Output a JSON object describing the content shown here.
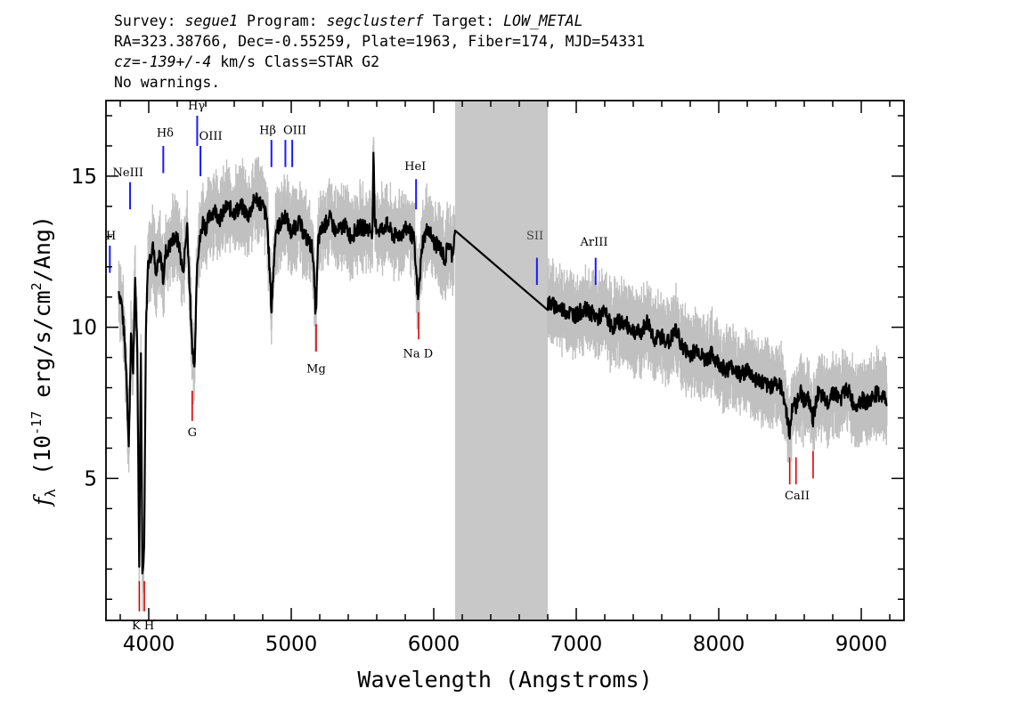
{
  "header": {
    "line1": {
      "survey_label": "Survey: ",
      "survey": "segue1",
      "program_label": " Program: ",
      "program": "segclusterf",
      "target_label": " Target: ",
      "target": "LOW_METAL"
    },
    "line2": "RA=323.38766, Dec=-0.55259, Plate=1963, Fiber=174, MJD=54331",
    "line3": {
      "cz": "cz=-139+/-4",
      "rest": " km/s Class=STAR G2"
    },
    "line4": "No warnings."
  },
  "chart_data": {
    "type": "line",
    "xlabel": "Wavelength (Angstroms)",
    "ylabel_prefix": "f",
    "ylabel_sub": "λ",
    "ylabel_unit_pre": "(10",
    "ylabel_exp": "-17",
    "ylabel_unit_post": " erg/s/cm",
    "ylabel_exp2": "2",
    "ylabel_tail": "/Ang)",
    "xlim": [
      3700,
      9300
    ],
    "ylim": [
      0.3,
      17.5
    ],
    "xticks": [
      4000,
      5000,
      6000,
      7000,
      8000,
      9000
    ],
    "yticks": [
      5,
      10,
      15
    ],
    "x_minor_step": 200,
    "y_minor_step": 1,
    "masked_region": [
      6150,
      6800
    ],
    "colors": {
      "flux": "#000000",
      "error": "#c0c0c0",
      "mask": "#c8c8c8",
      "emission": "#1a1aff",
      "absorption": "#e00000"
    },
    "series": [
      {
        "x": [
          3790,
          3810,
          3830,
          3845,
          3860,
          3875,
          3890,
          3905,
          3920,
          3933,
          3945,
          3955,
          3968,
          3980,
          3995,
          4010,
          4030,
          4050,
          4080,
          4102,
          4120,
          4150,
          4180,
          4210,
          4240,
          4270,
          4300,
          4320,
          4340,
          4360,
          4380,
          4400,
          4430,
          4460,
          4500,
          4550,
          4600,
          4650,
          4700,
          4750,
          4800,
          4830,
          4861,
          4890,
          4920,
          4960,
          5000,
          5050,
          5100,
          5150,
          5172,
          5190,
          5220,
          5270,
          5320,
          5370,
          5420,
          5470,
          5520,
          5570,
          5577,
          5585,
          5620,
          5670,
          5720,
          5770,
          5820,
          5860,
          5890,
          5920,
          5960,
          6000,
          6050,
          6080,
          6100,
          6130,
          6150,
          6800,
          6850,
          6900,
          6950,
          7000,
          7050,
          7100,
          7150,
          7200,
          7250,
          7300,
          7350,
          7400,
          7450,
          7500,
          7550,
          7600,
          7650,
          7700,
          7750,
          7800,
          7850,
          7900,
          7950,
          8000,
          8050,
          8100,
          8150,
          8200,
          8250,
          8300,
          8350,
          8400,
          8450,
          8498,
          8520,
          8542,
          8570,
          8600,
          8630,
          8662,
          8690,
          8720,
          8760,
          8800,
          8850,
          8900,
          8950,
          9000,
          9050,
          9100,
          9150,
          9180
        ],
        "y": [
          11.2,
          10.8,
          9.6,
          8.3,
          6.0,
          9.7,
          8.6,
          11.5,
          9.3,
          2.1,
          9.4,
          2.0,
          2.6,
          9.9,
          12.2,
          12.3,
          12.8,
          11.6,
          12.5,
          11.6,
          12.5,
          12.7,
          13.0,
          12.8,
          11.8,
          13.4,
          9.7,
          8.6,
          12.3,
          12.9,
          13.5,
          13.3,
          13.7,
          13.9,
          13.6,
          14.0,
          13.8,
          14.0,
          13.7,
          14.3,
          14.0,
          13.6,
          10.6,
          13.2,
          13.4,
          13.7,
          13.1,
          13.5,
          13.0,
          12.6,
          10.4,
          12.9,
          13.3,
          13.6,
          13.1,
          13.4,
          13.0,
          13.3,
          13.3,
          13.2,
          16.0,
          13.4,
          13.2,
          13.4,
          13.0,
          13.1,
          13.3,
          12.9,
          10.9,
          12.8,
          13.3,
          12.8,
          12.6,
          12.2,
          12.8,
          12.4,
          13.2,
          10.8,
          10.7,
          10.6,
          10.5,
          10.4,
          10.6,
          10.5,
          10.3,
          10.5,
          10.0,
          10.2,
          10.1,
          9.9,
          9.8,
          10.2,
          9.6,
          9.7,
          9.5,
          9.9,
          9.3,
          9.1,
          9.3,
          8.9,
          9.1,
          8.8,
          8.6,
          8.7,
          8.4,
          8.6,
          8.3,
          8.2,
          8.0,
          8.2,
          7.9,
          6.5,
          7.5,
          7.4,
          7.9,
          7.6,
          7.6,
          6.9,
          7.8,
          7.7,
          7.5,
          7.9,
          7.6,
          8.0,
          7.4,
          7.6,
          7.5,
          7.8,
          7.7,
          7.6
        ]
      }
    ],
    "emission_lines": [
      {
        "label": "NeIII",
        "x": 3869,
        "y0": 13.9,
        "y1": 14.8
      },
      {
        "label": "Hδ",
        "x": 4102,
        "y0": 15.1,
        "y1": 16.0
      },
      {
        "label": "Hγ",
        "x": 4340,
        "y0": 16.0,
        "y1": 17.0
      },
      {
        "label": "OIII",
        "x": 4363,
        "y0": 15.0,
        "y1": 16.0
      },
      {
        "label": "Hβ",
        "x": 4861,
        "y0": 15.3,
        "y1": 16.2
      },
      {
        "label": "OIII",
        "x": 4959,
        "y0": 15.3,
        "y1": 16.2
      },
      {
        "label": "OIII",
        "x": 5007,
        "y0": 15.3,
        "y1": 16.2
      },
      {
        "label": "HeI",
        "x": 5876,
        "y0": 13.9,
        "y1": 14.9
      },
      {
        "label": "SII",
        "x": 6724,
        "y0": 11.4,
        "y1": 12.3
      },
      {
        "label": "ArIII",
        "x": 7136,
        "y0": 11.4,
        "y1": 12.3
      },
      {
        "label": "H",
        "x": 3727,
        "y0": 11.8,
        "y1": 12.7
      }
    ],
    "absorption_lines": [
      {
        "label": "K",
        "x": 3934,
        "y0": 0.6,
        "y1": 1.6
      },
      {
        "label": "H",
        "x": 3969,
        "y0": 0.6,
        "y1": 1.6
      },
      {
        "label": "G",
        "x": 4305,
        "y0": 6.9,
        "y1": 7.9
      },
      {
        "label": "Mg",
        "x": 5175,
        "y0": 9.2,
        "y1": 10.1
      },
      {
        "label": "Na D",
        "x": 5894,
        "y0": 9.6,
        "y1": 10.5
      },
      {
        "label": "CaII",
        "x": 8498,
        "y0": 4.8,
        "y1": 5.7
      },
      {
        "label": "CaII",
        "x": 8542,
        "y0": 4.8,
        "y1": 5.7
      },
      {
        "label": "CaII",
        "x": 8662,
        "y0": 5.0,
        "y1": 5.9
      }
    ],
    "line_label_positions": [
      {
        "label": "NeIII",
        "x": 3855,
        "y": 15.0,
        "kind": "emission"
      },
      {
        "label": "Hδ",
        "x": 4115,
        "y": 16.3,
        "kind": "emission"
      },
      {
        "label": "Hγ",
        "x": 4335,
        "y": 17.2,
        "kind": "emission"
      },
      {
        "label": "OIII",
        "x": 4435,
        "y": 16.2,
        "kind": "emission"
      },
      {
        "label": "Hβ",
        "x": 4835,
        "y": 16.4,
        "kind": "emission"
      },
      {
        "label": "OIII",
        "x": 5025,
        "y": 16.4,
        "kind": "emission"
      },
      {
        "label": "HeI",
        "x": 5870,
        "y": 15.2,
        "kind": "emission"
      },
      {
        "label": "SII",
        "x": 6710,
        "y": 12.9,
        "kind": "emission"
      },
      {
        "label": "ArIII",
        "x": 7125,
        "y": 12.7,
        "kind": "emission"
      },
      {
        "label": "H",
        "x": 3735,
        "y": 12.9,
        "kind": "emission"
      },
      {
        "label": "K H",
        "x": 3960,
        "y": 0.0,
        "kind": "absorption"
      },
      {
        "label": "G",
        "x": 4305,
        "y": 6.4,
        "kind": "absorption"
      },
      {
        "label": "Mg",
        "x": 5175,
        "y": 8.5,
        "kind": "absorption"
      },
      {
        "label": "Na D",
        "x": 5890,
        "y": 9.0,
        "kind": "absorption"
      },
      {
        "label": "CaII",
        "x": 8550,
        "y": 4.3,
        "kind": "absorption"
      }
    ]
  }
}
